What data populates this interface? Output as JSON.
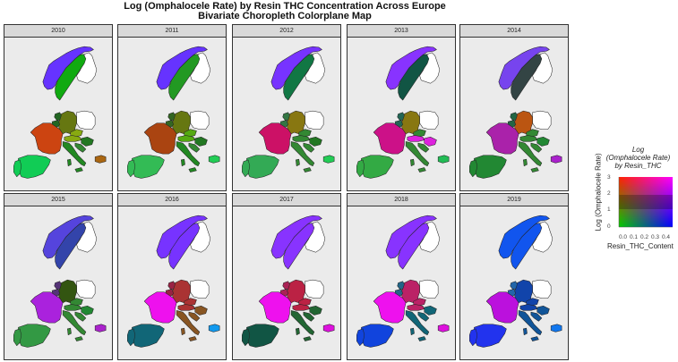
{
  "title_line1": "Log (Omphalocele Rate) by Resin THC Concentration Across Europe",
  "title_line2": "Bivariate Choropleth Colorplane Map",
  "panels": [
    {
      "year": "2010",
      "colors": {
        "norway": "#6633ff",
        "sweden": "#11aa11",
        "finland": null,
        "france": "#cc4411",
        "germany": "#667711",
        "poland": null,
        "spain": "#11cc55",
        "italy": "#228822",
        "austria": "#88aa11",
        "czechia": "#88aa11",
        "hungary": "#227722",
        "croatia": "#338833",
        "bulgaria": "#aa6611",
        "belgium": "#226622",
        "netherlands": "#226622",
        "portugal": "#11cc55"
      }
    },
    {
      "year": "2011",
      "colors": {
        "norway": "#6633ff",
        "sweden": "#229922",
        "finland": null,
        "france": "#aa4411",
        "germany": "#667711",
        "poland": null,
        "spain": "#33bb55",
        "italy": "#228822",
        "austria": "#55aa11",
        "czechia": "#55aa11",
        "hungary": "#227722",
        "croatia": "#338833",
        "bulgaria": "#22cc55",
        "belgium": "#336622",
        "netherlands": "#336622",
        "portugal": "#33bb55"
      }
    },
    {
      "year": "2012",
      "colors": {
        "norway": "#7733ff",
        "sweden": "#117744",
        "finland": null,
        "france": "#cc1166",
        "germany": "#887711",
        "poland": null,
        "spain": "#33aa55",
        "italy": "#338833",
        "austria": "#338833",
        "czechia": "#338833",
        "hungary": "#227722",
        "croatia": "#338833",
        "bulgaria": "#22cc55",
        "belgium": "#337744",
        "netherlands": "#337744",
        "portugal": "#33aa55"
      }
    },
    {
      "year": "2013",
      "colors": {
        "norway": "#8833ff",
        "sweden": "#115544",
        "finland": null,
        "france": "#cc1188",
        "germany": "#887711",
        "poland": null,
        "spain": "#33aa44",
        "italy": "#338833",
        "austria": "#dd22dd",
        "czechia": "#338833",
        "hungary": "#dd22dd",
        "croatia": "#338833",
        "bulgaria": "#22bb55",
        "belgium": "#226655",
        "netherlands": "#226655",
        "portugal": "#33aa44"
      }
    },
    {
      "year": "2014",
      "colors": {
        "norway": "#7744ee",
        "sweden": "#334444",
        "finland": null,
        "france": "#aa22aa",
        "germany": "#bb5511",
        "poland": null,
        "spain": "#228833",
        "italy": "#338833",
        "austria": "#338833",
        "czechia": "#338833",
        "hungary": "#228833",
        "croatia": "#338833",
        "bulgaria": "#aa22cc",
        "belgium": "#226644",
        "netherlands": "#226644",
        "portugal": "#228833"
      }
    },
    {
      "year": "2015",
      "colors": {
        "norway": "#5544dd",
        "sweden": "#3344aa",
        "finland": null,
        "france": "#aa22dd",
        "germany": "#335511",
        "poland": null,
        "spain": "#339944",
        "italy": "#338833",
        "austria": "#338833",
        "czechia": "#338833",
        "hungary": "#228833",
        "croatia": "#338833",
        "bulgaria": "#aa22cc",
        "belgium": "#553377",
        "netherlands": "#553377",
        "portugal": "#339944"
      }
    },
    {
      "year": "2016",
      "colors": {
        "norway": "#7733ff",
        "sweden": "#7733ff",
        "finland": null,
        "france": "#ee11ee",
        "germany": "#aa3333",
        "poland": null,
        "spain": "#116677",
        "italy": "#885522",
        "austria": "#aa3333",
        "czechia": "#aa3333",
        "hungary": "#885522",
        "croatia": "#885522",
        "bulgaria": "#1199ee",
        "belgium": "#992244",
        "netherlands": "#992244",
        "portugal": "#116677"
      }
    },
    {
      "year": "2017",
      "colors": {
        "norway": "#8833ff",
        "sweden": "#8833ff",
        "finland": null,
        "france": "#ee11ee",
        "germany": "#bb2244",
        "poland": null,
        "spain": "#115544",
        "italy": "#226633",
        "austria": "#bb2244",
        "czechia": "#bb2244",
        "hungary": "#226633",
        "croatia": "#226633",
        "bulgaria": "#dd11dd",
        "belgium": "#aa2255",
        "netherlands": "#aa2255",
        "portugal": "#115544"
      }
    },
    {
      "year": "2018",
      "colors": {
        "norway": "#8833ff",
        "sweden": "#8833ff",
        "finland": null,
        "france": "#ee11ee",
        "germany": "#bb2266",
        "poland": null,
        "spain": "#1144dd",
        "italy": "#116677",
        "austria": "#bb2266",
        "czechia": "#bb2266",
        "hungary": "#116677",
        "croatia": "#116677",
        "bulgaria": "#dd11dd",
        "belgium": "#226688",
        "netherlands": "#226688",
        "portugal": "#1144dd"
      }
    },
    {
      "year": "2019",
      "colors": {
        "norway": "#1155ee",
        "sweden": "#1155ee",
        "finland": null,
        "france": "#bb11dd",
        "germany": "#1144aa",
        "poland": null,
        "spain": "#2233ee",
        "italy": "#115599",
        "austria": "#1144aa",
        "czechia": "#1144aa",
        "hungary": "#115599",
        "croatia": "#115599",
        "bulgaria": "#1177ee",
        "belgium": "#2266aa",
        "netherlands": "#2266aa",
        "portugal": "#2233ee"
      }
    }
  ],
  "legend": {
    "title_lines": [
      "Log",
      "(Omphalocele Rate)",
      "by Resin_THC"
    ],
    "y_label": "Log (Omphalocele Rate)",
    "x_label": "Resin_THC_Content",
    "y_ticks": [
      "3",
      "2",
      "1",
      "0"
    ],
    "x_ticks": [
      "0.0",
      "0.1",
      "0.2",
      "0.3",
      "0.4"
    ]
  }
}
